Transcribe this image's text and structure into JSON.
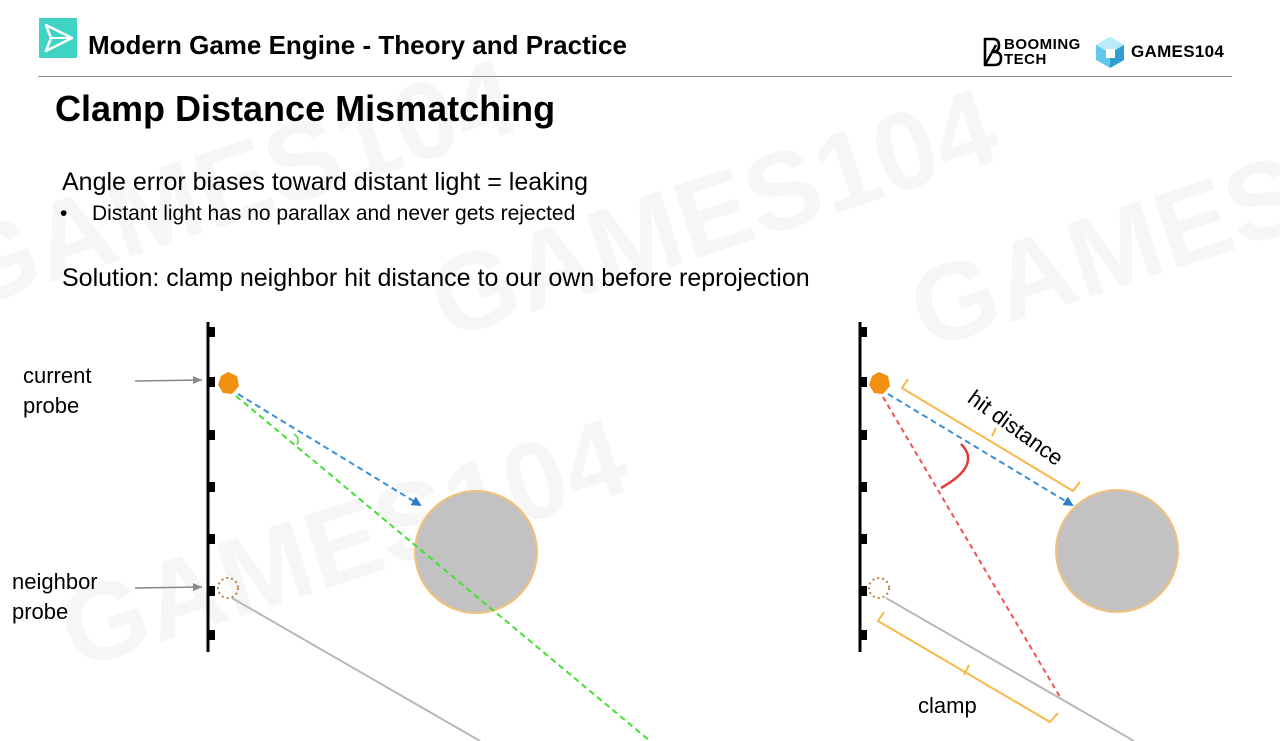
{
  "header": {
    "title": "Modern Game Engine - Theory and Practice",
    "brand_booming_line1": "BOOMING",
    "brand_booming_line2": "TECH",
    "brand_games": "GAMES104"
  },
  "slide": {
    "title": "Clamp Distance Mismatching",
    "point1": "Angle error biases toward distant light = leaking",
    "bullet1": "Distant light has no parallax and never gets rejected",
    "point2": "Solution: clamp neighbor hit distance to our own before reprojection"
  },
  "diagram_left": {
    "label_current": "current\nprobe",
    "label_neighbor": "neighbor\nprobe"
  },
  "diagram_right": {
    "label_hit": "hit distance",
    "label_clamp": "clamp"
  },
  "watermark": "GAMES104",
  "colors": {
    "probe_orange": "#f0900e",
    "sphere_fill": "#c2c2c2",
    "sphere_edge": "#f2c27a",
    "ray_blue": "#3a8fd6",
    "ray_green": "#44e030",
    "ray_red": "#f05050",
    "bracket_orange": "#f7b84a",
    "logo_teal": "#3fd3c3"
  },
  "icons": {
    "logo": "paper-plane-tile-icon",
    "booming": "booming-b-icon",
    "games": "cube-icon"
  }
}
